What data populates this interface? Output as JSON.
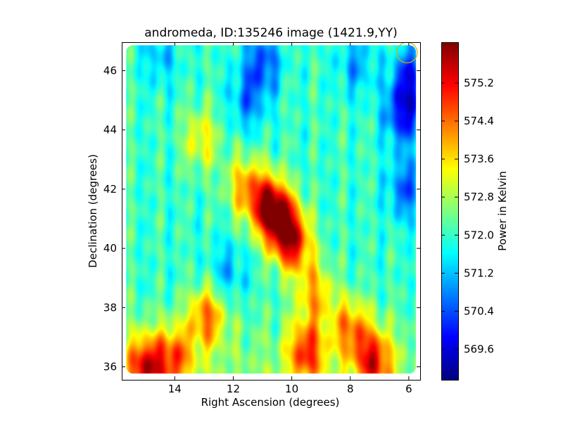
{
  "chart_data": {
    "type": "heatmap",
    "title": "andromeda, ID:135246 image (1421.9,YY)",
    "xlabel": "Right Ascension (degrees)",
    "ylabel": "Declination (degrees)",
    "xlim": [
      15.8,
      5.6
    ],
    "ylim": [
      35.55,
      46.95
    ],
    "xticks": [
      14,
      12,
      10,
      8,
      6
    ],
    "xtick_labels": [
      "14",
      "12",
      "10",
      "8",
      "6"
    ],
    "yticks": [
      36,
      38,
      40,
      42,
      44,
      46
    ],
    "ytick_labels": [
      "36",
      "38",
      "40",
      "42",
      "44",
      "46"
    ],
    "colorbar": {
      "label": "Power in Kelvin",
      "colormap": "jet",
      "range": [
        568.95,
        576.05
      ],
      "ticks": [
        569.6,
        570.4,
        571.2,
        572.0,
        572.8,
        573.6,
        574.4,
        575.2
      ],
      "tick_labels": [
        "569.6",
        "570.4",
        "571.2",
        "572.0",
        "572.8",
        "573.6",
        "574.4",
        "575.2"
      ]
    },
    "data_extent": {
      "ra": [
        15.65,
        5.75
      ],
      "dec": [
        35.75,
        46.85
      ]
    },
    "beam_marker": {
      "ra": 6.05,
      "dec": 46.6,
      "radius_deg": 0.35,
      "color": "#d4b000"
    },
    "grid": false,
    "colorbar_position": "right",
    "features": [
      {
        "ra": 10.8,
        "dec": 41.45,
        "value": 575.3
      },
      {
        "ra": 10.3,
        "dec": 40.8,
        "value": 574.9
      },
      {
        "ra": 9.9,
        "dec": 40.1,
        "value": 574.3
      },
      {
        "ra": 11.6,
        "dec": 42.1,
        "value": 573.8
      },
      {
        "ra": 12.9,
        "dec": 37.7,
        "value": 574.2
      },
      {
        "ra": 13.1,
        "dec": 43.7,
        "value": 573.4
      },
      {
        "ra": 15.0,
        "dec": 36.0,
        "value": 575.0
      },
      {
        "ra": 14.0,
        "dec": 36.3,
        "value": 574.2
      },
      {
        "ra": 9.5,
        "dec": 36.5,
        "value": 574.6
      },
      {
        "ra": 9.2,
        "dec": 38.5,
        "value": 573.8
      },
      {
        "ra": 7.2,
        "dec": 36.2,
        "value": 574.8
      },
      {
        "ra": 8.0,
        "dec": 37.3,
        "value": 574.0
      },
      {
        "ra": 6.2,
        "dec": 44.5,
        "value": 570.0
      },
      {
        "ra": 6.1,
        "dec": 42.0,
        "value": 570.5
      },
      {
        "ra": 5.95,
        "dec": 45.8,
        "value": 570.2
      },
      {
        "ra": 11.0,
        "dec": 46.3,
        "value": 570.4
      },
      {
        "ra": 11.5,
        "dec": 45.0,
        "value": 570.8
      },
      {
        "ra": 12.2,
        "dec": 39.2,
        "value": 571.1
      },
      {
        "ra": 14.5,
        "dec": 46.5,
        "value": 571.2
      },
      {
        "ra": 7.8,
        "dec": 46.2,
        "value": 571.0
      }
    ]
  }
}
